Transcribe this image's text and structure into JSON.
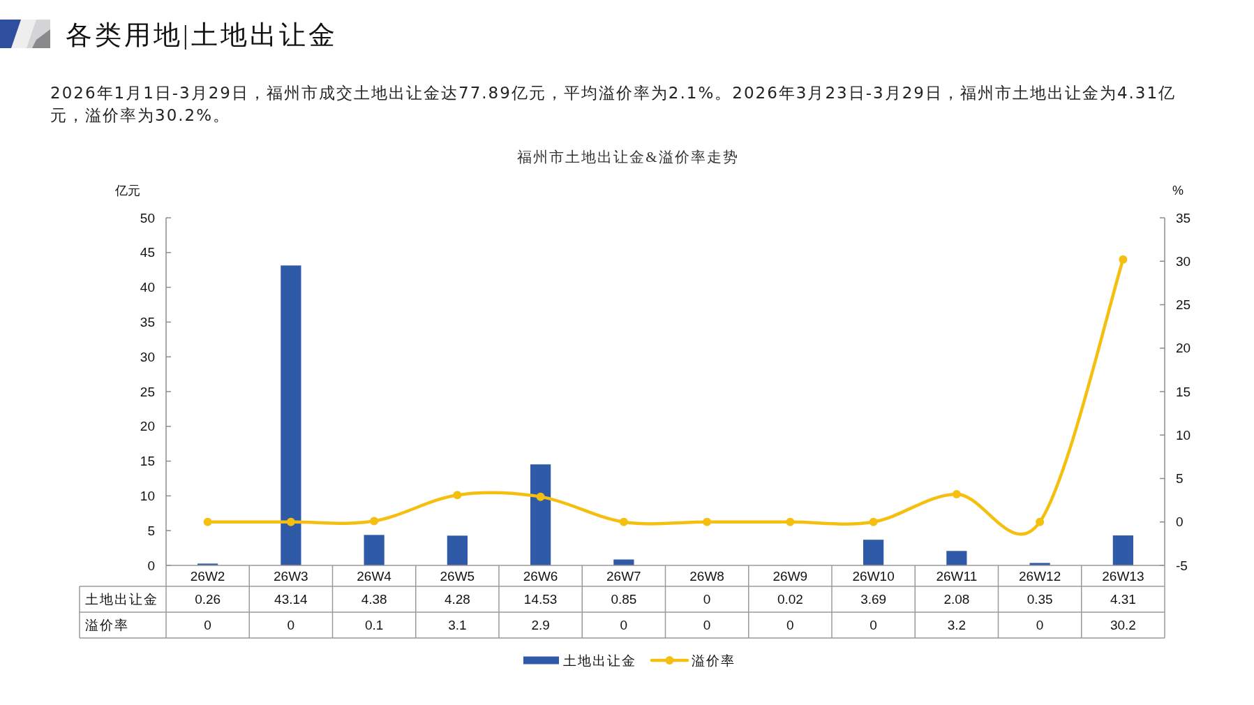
{
  "chart_data": {
    "type": "bar",
    "title": "各类用地|土地出让金",
    "subtitle": "2026年1月1日-3月29日，福州市成交土地出让金达77.89亿元，平均溢价率为2.1%。2026年3月23日-3月29日，福州市土地出让金为4.31亿元，溢价率为30.2%。",
    "annotations": [
      "福州市土地出让金&溢价率走势"
    ],
    "ylabel": "亿元",
    "y2label": "%",
    "categories": [
      "26W2",
      "26W3",
      "26W4",
      "26W5",
      "26W6",
      "26W7",
      "26W8",
      "26W9",
      "26W10",
      "26W11",
      "26W12",
      "26W13"
    ],
    "series": [
      {
        "name": "土地出让金",
        "color": "#2e5aa8",
        "values": [
          0.26,
          43.14,
          4.38,
          4.28,
          14.53,
          0.85,
          0,
          0.02,
          3.69,
          2.08,
          0.35,
          4.31
        ]
      },
      {
        "name": "溢价率",
        "type": "line",
        "axis": "y2",
        "color": "#f5bf0f",
        "values": [
          0,
          0,
          0.1,
          3.1,
          2.9,
          0,
          0,
          0,
          0,
          3.2,
          0,
          30.2
        ]
      }
    ],
    "ylim": [
      0,
      50
    ],
    "yticks": [
      0,
      5,
      10,
      15,
      20,
      25,
      30,
      35,
      40,
      45,
      50
    ],
    "y2lim": [
      -5,
      35
    ],
    "y2ticks": [
      -5,
      0,
      5,
      10,
      15,
      20,
      25,
      30,
      35
    ],
    "marker": "circle",
    "data_labels": true,
    "legend": "bottom"
  }
}
